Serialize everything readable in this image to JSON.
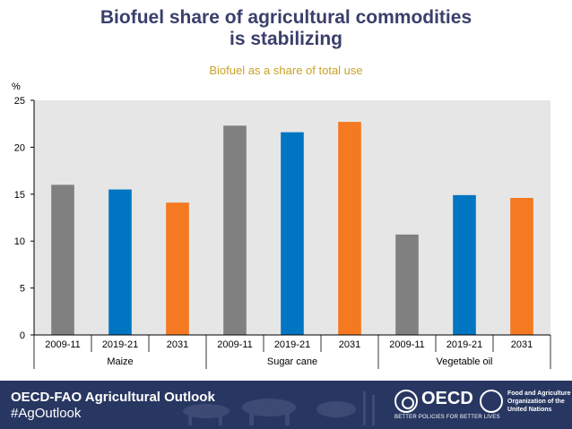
{
  "title_line1": "Biofuel share of agricultural commodities",
  "title_line2": "is stabilizing",
  "chart_data": {
    "type": "bar",
    "title": "Biofuel share of agricultural commodities is stabilizing",
    "subtitle": "Biofuel as a share of total use",
    "ylabel": "%",
    "xlabel": "",
    "ylim": [
      0,
      25
    ],
    "yticks": [
      0,
      5,
      10,
      15,
      20,
      25
    ],
    "grid": false,
    "groups": [
      {
        "name": "Maize",
        "categories": [
          "2009-11",
          "2019-21",
          "2031"
        ],
        "values": [
          16.0,
          15.5,
          14.1
        ]
      },
      {
        "name": "Sugar cane",
        "categories": [
          "2009-11",
          "2019-21",
          "2031"
        ],
        "values": [
          22.3,
          21.6,
          22.7
        ]
      },
      {
        "name": "Vegetable oil",
        "categories": [
          "2009-11",
          "2019-21",
          "2031"
        ],
        "values": [
          10.7,
          14.9,
          14.6
        ]
      }
    ],
    "colors": {
      "2009-11": "#808080",
      "2019-21": "#0075c2",
      "2031": "#f47920",
      "plot_background": "#e6e6e6"
    }
  },
  "footer": {
    "brand": "OECD-FAO Agricultural Outlook",
    "hashtag": "#AgOutlook",
    "oecd_name": "OECD",
    "oecd_tagline": "BETTER POLICIES FOR BETTER LIVES",
    "fao_line1": "Food and Agriculture",
    "fao_line2": "Organization of the",
    "fao_line3": "United Nations"
  }
}
